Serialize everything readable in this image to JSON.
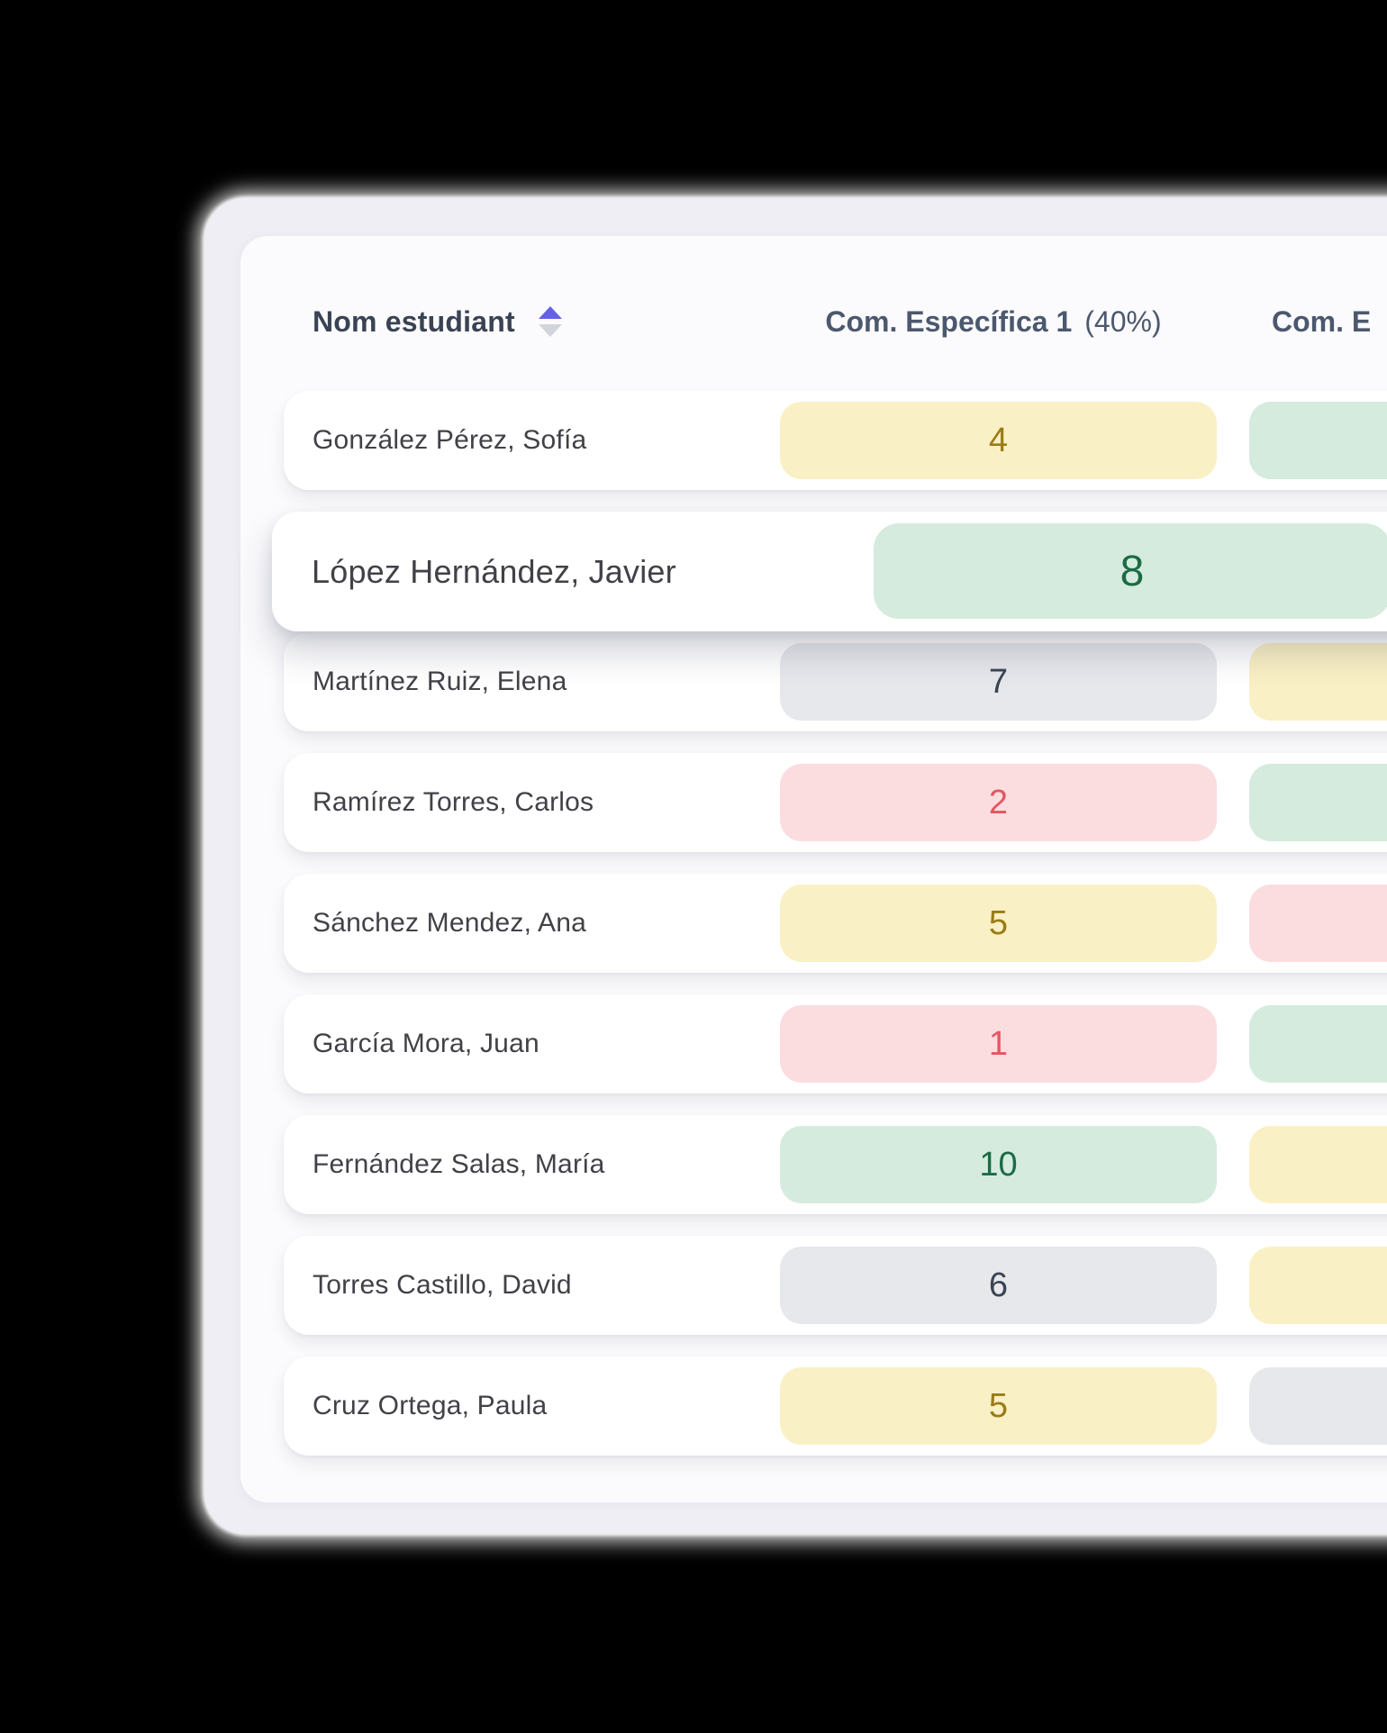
{
  "table": {
    "header": {
      "name_column_label": "Nom estudiant",
      "name_column_sortable": true,
      "columns": [
        {
          "label": "Com. Específica 1",
          "weight_label": "(40%)"
        },
        {
          "label": "Com. E"
        }
      ]
    },
    "rows": [
      {
        "name": "González Pérez, Sofía",
        "score1": "4",
        "score1_color": "yellow",
        "score2_color": "green",
        "highlighted": false
      },
      {
        "name": "López Hernández, Javier",
        "score1": "8",
        "score1_color": "green",
        "score2_color": null,
        "highlighted": true
      },
      {
        "name": "Martínez Ruiz, Elena",
        "score1": "7",
        "score1_color": "gray",
        "score2_color": "yellow",
        "highlighted": false
      },
      {
        "name": "Ramírez Torres, Carlos",
        "score1": "2",
        "score1_color": "pink",
        "score2_color": "green",
        "highlighted": false
      },
      {
        "name": "Sánchez Mendez, Ana",
        "score1": "5",
        "score1_color": "yellow",
        "score2_color": "pink",
        "highlighted": false
      },
      {
        "name": "García Mora, Juan",
        "score1": "1",
        "score1_color": "pink",
        "score2_color": "green",
        "highlighted": false
      },
      {
        "name": "Fernández Salas, María",
        "score1": "10",
        "score1_color": "green",
        "score2_color": "yellow",
        "highlighted": false
      },
      {
        "name": "Torres Castillo, David",
        "score1": "6",
        "score1_color": "gray",
        "score2_color": "yellow",
        "highlighted": false
      },
      {
        "name": "Cruz Ortega, Paula",
        "score1": "5",
        "score1_color": "yellow",
        "score2_color": "gray",
        "highlighted": false
      }
    ]
  },
  "colors": {
    "page_background": "#000000",
    "outer_card_background": "#EFEEF4",
    "inner_card_background": "#FBFBFD",
    "row_background": "#FFFFFF",
    "header_text": "#4C586E",
    "name_column_text": "#3A4353",
    "student_name_text": "#414147",
    "sort_up": "#6461E8",
    "sort_down": "#D2D4DB",
    "pill_palette": {
      "yellow": {
        "bg": "#FAF0C5",
        "text": "#9A7B16"
      },
      "green": {
        "bg": "#D5EBDE",
        "text": "#1C6B44"
      },
      "gray": {
        "bg": "#E7E8EC",
        "text": "#3B4453"
      },
      "pink": {
        "bg": "#FBDDE0",
        "text": "#E2575F"
      }
    }
  }
}
